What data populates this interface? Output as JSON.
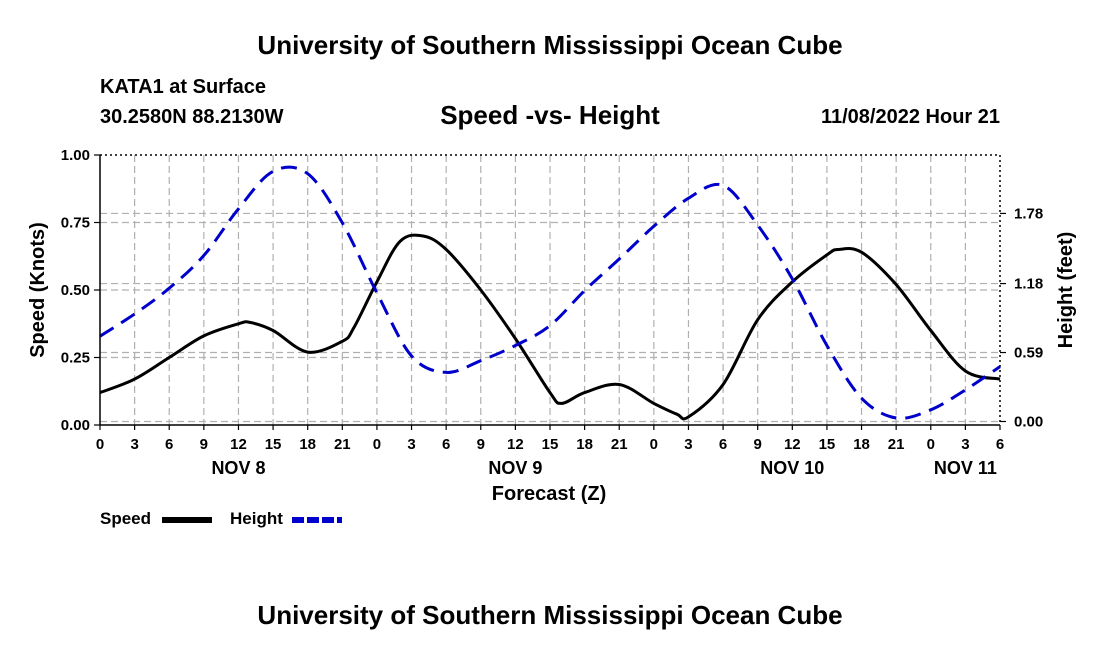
{
  "header": {
    "title": "University of Southern Mississippi Ocean Cube",
    "station": "KATA1 at Surface",
    "coordinates": "30.2580N  88.2130W",
    "subtitle": "Speed -vs- Height",
    "datetime": "11/08/2022 Hour 21"
  },
  "footer": {
    "title": "University of Southern Mississippi Ocean Cube"
  },
  "legend": {
    "speed_label": "Speed",
    "height_label": "Height"
  },
  "colors": {
    "speed": "#000000",
    "height": "#0000cc",
    "grid": "#b0b0b0"
  },
  "chart_data": {
    "type": "line",
    "title": "Speed -vs- Height",
    "xlabel": "Forecast (Z)",
    "ylabel_left": "Speed (Knots)",
    "ylabel_right": "Height (feet)",
    "x_unit": "hours from NOV 8 00Z",
    "xlim": [
      0,
      78
    ],
    "ylim_left": [
      0,
      1.0
    ],
    "ylim_right": [
      -0.03,
      2.28
    ],
    "x_tick_values": [
      0,
      3,
      6,
      9,
      12,
      15,
      18,
      21,
      24,
      27,
      30,
      33,
      36,
      39,
      42,
      45,
      48,
      51,
      54,
      57,
      60,
      63,
      66,
      69,
      72,
      75,
      78
    ],
    "x_tick_labels": [
      "0",
      "3",
      "6",
      "9",
      "12",
      "15",
      "18",
      "21",
      "0",
      "3",
      "6",
      "9",
      "12",
      "15",
      "18",
      "21",
      "0",
      "3",
      "6",
      "9",
      "12",
      "15",
      "18",
      "21",
      "0",
      "3",
      "6"
    ],
    "day_labels": [
      {
        "x": 12,
        "label": "NOV 8"
      },
      {
        "x": 36,
        "label": "NOV 9"
      },
      {
        "x": 60,
        "label": "NOV 10"
      },
      {
        "x": 75,
        "label": "NOV 11"
      }
    ],
    "left_ticks": [
      {
        "value": 0,
        "label": "0.00"
      },
      {
        "value": 0.25,
        "label": "0.25"
      },
      {
        "value": 0.5,
        "label": "0.50"
      },
      {
        "value": 0.75,
        "label": "0.75"
      },
      {
        "value": 1.0,
        "label": "1.00"
      }
    ],
    "right_ticks": [
      {
        "value": 0,
        "label": "0.00"
      },
      {
        "value": 0.59,
        "label": "0.59"
      },
      {
        "value": 1.18,
        "label": "1.18"
      },
      {
        "value": 1.78,
        "label": "1.78"
      }
    ],
    "series": [
      {
        "name": "Speed",
        "axis": "left",
        "style": "solid",
        "x": [
          0,
          3,
          6,
          9,
          12,
          13,
          15,
          18,
          21,
          22,
          24,
          26,
          28,
          30,
          33,
          36,
          39,
          40,
          42,
          45,
          48,
          50,
          51,
          54,
          57,
          60,
          63,
          64,
          66,
          69,
          72,
          75,
          78
        ],
        "y": [
          0.12,
          0.17,
          0.25,
          0.33,
          0.375,
          0.38,
          0.35,
          0.27,
          0.31,
          0.36,
          0.53,
          0.68,
          0.7,
          0.65,
          0.5,
          0.32,
          0.12,
          0.08,
          0.12,
          0.15,
          0.08,
          0.04,
          0.03,
          0.15,
          0.39,
          0.53,
          0.63,
          0.65,
          0.64,
          0.52,
          0.35,
          0.2,
          0.17
        ]
      },
      {
        "name": "Height",
        "axis": "right",
        "style": "dashed",
        "x": [
          0,
          3,
          6,
          9,
          12,
          15,
          18,
          21,
          24,
          27,
          30,
          33,
          36,
          39,
          42,
          45,
          48,
          51,
          54,
          57,
          60,
          63,
          66,
          69,
          72,
          75,
          78
        ],
        "y": [
          0.73,
          0.92,
          1.14,
          1.42,
          1.82,
          2.14,
          2.12,
          1.7,
          1.1,
          0.56,
          0.42,
          0.52,
          0.65,
          0.82,
          1.12,
          1.39,
          1.67,
          1.91,
          2.02,
          1.68,
          1.22,
          0.65,
          0.2,
          0.03,
          0.1,
          0.27,
          0.47
        ]
      }
    ]
  }
}
